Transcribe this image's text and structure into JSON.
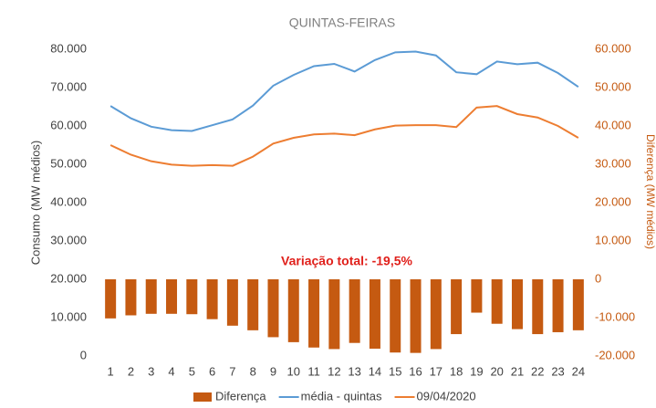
{
  "chart_data": {
    "type": "combo",
    "title": "QUINTAS-FEIRAS",
    "y_label": "Consumo (MW médios)",
    "y2_label": "Diferença (MW médios)",
    "annotation": "Variação total: -19,5%",
    "categories": [
      "1",
      "2",
      "3",
      "4",
      "5",
      "6",
      "7",
      "8",
      "9",
      "10",
      "11",
      "12",
      "13",
      "14",
      "15",
      "16",
      "17",
      "18",
      "19",
      "20",
      "21",
      "22",
      "23",
      "24"
    ],
    "series": [
      {
        "name": "Diferença",
        "type": "bar",
        "axis": "y2",
        "color": "#c55a11",
        "values": [
          -10200,
          -9400,
          -9000,
          -9000,
          -9100,
          -10400,
          -12100,
          -13300,
          -15100,
          -16400,
          -17800,
          -18200,
          -16600,
          -18100,
          -19100,
          -19200,
          -18200,
          -14300,
          -8700,
          -11600,
          -13000,
          -14300,
          -13800,
          -13300
        ]
      },
      {
        "name": "média - quintas",
        "type": "line",
        "color": "#5b9bd5",
        "values": [
          65200,
          62000,
          59800,
          58900,
          58700,
          60200,
          61700,
          65300,
          70500,
          73300,
          75600,
          76200,
          74200,
          77200,
          79200,
          79400,
          78400,
          74000,
          73500,
          76800,
          76100,
          76500,
          73800,
          70200
        ]
      },
      {
        "name": "09/04/2020",
        "type": "line",
        "color": "#ed7d31",
        "values": [
          55000,
          52500,
          50800,
          49900,
          49600,
          49800,
          49600,
          52000,
          55400,
          56900,
          57800,
          58000,
          57600,
          59100,
          60100,
          60200,
          60200,
          59700,
          64800,
          65200,
          63100,
          62200,
          60000,
          56900
        ]
      }
    ],
    "ylim": [
      0,
      80000
    ],
    "yticks": [
      0,
      {
        "value": 10000,
        "label": "10.000"
      },
      {
        "value": 20000,
        "label": "20.000"
      },
      {
        "value": 30000,
        "label": "30.000"
      },
      {
        "value": 40000,
        "label": "40.000"
      },
      {
        "value": 50000,
        "label": "50.000"
      },
      {
        "value": 60000,
        "label": "60.000"
      },
      {
        "value": 70000,
        "label": "70.000"
      },
      {
        "value": 80000,
        "label": "80.000"
      }
    ],
    "y2lim": [
      -20000,
      60000
    ],
    "y2ticks": [
      {
        "value": -20000,
        "label": "-20.000"
      },
      {
        "value": -10000,
        "label": "-10.000"
      },
      0,
      {
        "value": 10000,
        "label": "10.000"
      },
      {
        "value": 20000,
        "label": "20.000"
      },
      {
        "value": 30000,
        "label": "30.000"
      },
      {
        "value": 40000,
        "label": "40.000"
      },
      {
        "value": 50000,
        "label": "50.000"
      },
      {
        "value": 60000,
        "label": "60.000"
      }
    ],
    "y2_color": "#c55a11",
    "annotation_color": "#e0201b",
    "grid": false
  }
}
